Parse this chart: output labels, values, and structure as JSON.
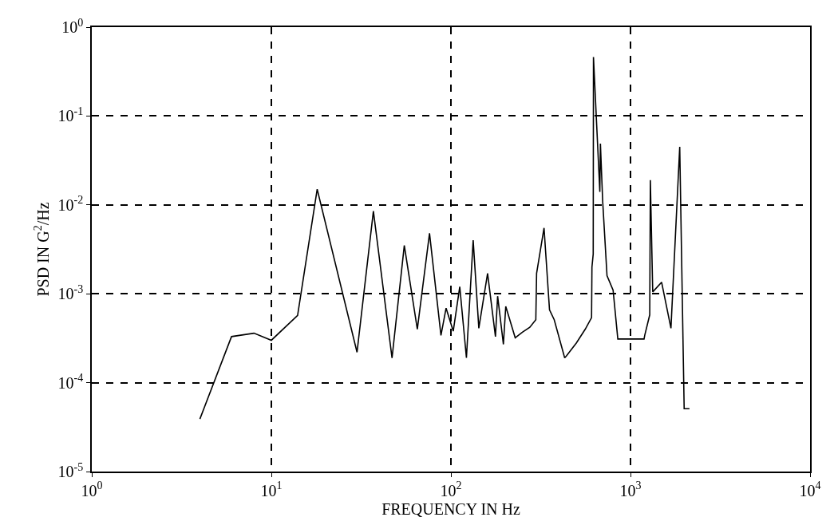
{
  "chart_data": {
    "type": "line",
    "xlabel": "FREQUENCY IN Hz",
    "ylabel": "PSD IN G$^{2}$/Hz",
    "log": "xy",
    "grid": true,
    "marker": "none",
    "line_style": "solid",
    "xlim": [
      1,
      10000
    ],
    "xticks": [
      {
        "value": 1,
        "label": "10$^{0}$"
      },
      {
        "value": 10,
        "label": "10$^{1}$"
      },
      {
        "value": 100,
        "label": "10$^{2}$"
      },
      {
        "value": 1000,
        "label": "10$^{3}$"
      },
      {
        "value": 10000,
        "label": "10$^{4}$"
      }
    ],
    "ylim": [
      1e-05,
      1
    ],
    "yticks": [
      {
        "value": 1e-05,
        "label": "10$^{-5}$"
      },
      {
        "value": 0.0001,
        "label": "10$^{-4}$"
      },
      {
        "value": 0.001,
        "label": "10$^{-3}$"
      },
      {
        "value": 0.01,
        "label": "10$^{-2}$"
      },
      {
        "value": 0.1,
        "label": "10$^{-1}$"
      },
      {
        "value": 1,
        "label": "10$^{0}$"
      }
    ],
    "series": [
      {
        "color": "#000000",
        "x": [
          4,
          6,
          8,
          10,
          14,
          18,
          30,
          37,
          47,
          55,
          65,
          76,
          88,
          94,
          103,
          112,
          122,
          133,
          143,
          160,
          177,
          182,
          196,
          202,
          228,
          250,
          275,
          297,
          300,
          330,
          354,
          376,
          430,
          440,
          500,
          560,
          607,
          610,
          620,
          622,
          675,
          680,
          700,
          740,
          800,
          850,
          1190,
          1200,
          1280,
          1290,
          1330,
          1490,
          1680,
          1880,
          1990,
          2130
        ],
        "values": [
          3.9e-05,
          0.00033,
          0.00036,
          0.0003,
          0.00057,
          0.015,
          0.00022,
          0.0085,
          0.00019,
          0.0035,
          0.0004,
          0.0048,
          0.00034,
          0.00069,
          0.00038,
          0.0012,
          0.00019,
          0.004,
          0.00041,
          0.0017,
          0.00033,
          0.00094,
          0.00027,
          0.00072,
          0.00032,
          0.00037,
          0.00042,
          0.00051,
          0.0017,
          0.0055,
          0.00066,
          0.00051,
          0.00019,
          0.0002,
          0.00028,
          0.0004,
          0.00054,
          0.002,
          0.0028,
          0.46,
          0.014,
          0.049,
          0.011,
          0.0016,
          0.0011,
          0.00031,
          0.00031,
          0.00034,
          0.00058,
          0.019,
          0.00105,
          0.00135,
          0.00041,
          0.045,
          5.1e-05,
          5.1e-05
        ]
      }
    ]
  }
}
